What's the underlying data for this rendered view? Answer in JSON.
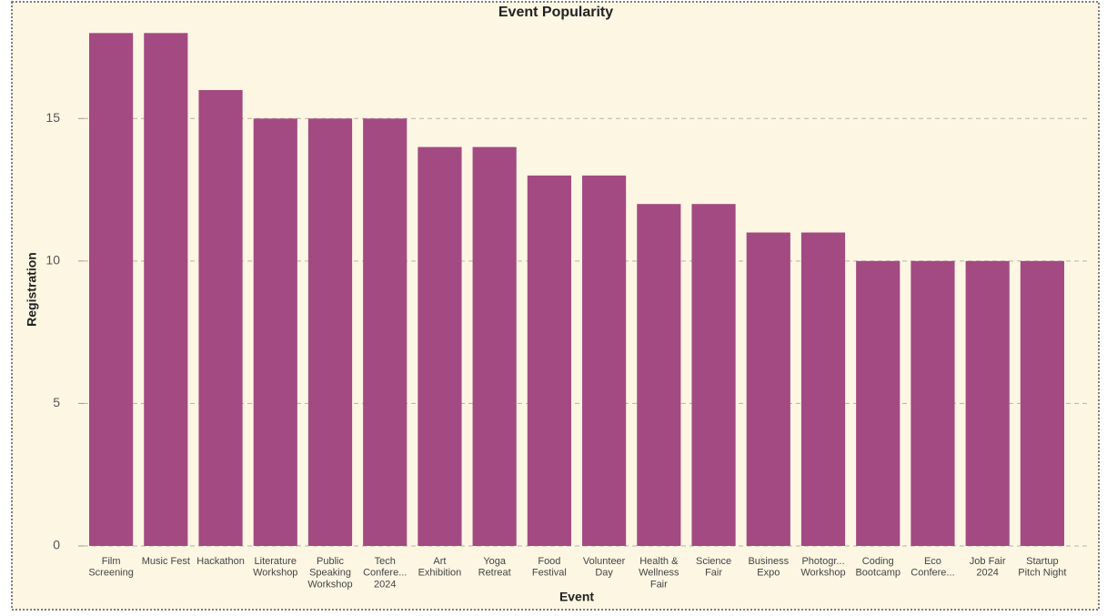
{
  "chart_data": {
    "type": "bar",
    "title": "Event Popularity",
    "x_label": "Event",
    "y_label": "Registration",
    "categories": [
      "Film\nScreening",
      "Music Fest",
      "Hackathon",
      "Literature\nWorkshop",
      "Public\nSpeaking\nWorkshop",
      "Tech\nConfere...\n2024",
      "Art\nExhibition",
      "Yoga\nRetreat",
      "Food\nFestival",
      "Volunteer\nDay",
      "Health &\nWellness\nFair",
      "Science\nFair",
      "Business\nExpo",
      "Photogr...\nWorkshop",
      "Coding\nBootcamp",
      "Eco\nConfere...",
      "Job Fair\n2024",
      "Startup\nPitch Night"
    ],
    "values": [
      18,
      18,
      16,
      15,
      15,
      15,
      14,
      14,
      13,
      13,
      12,
      12,
      11,
      11,
      10,
      10,
      10,
      10
    ],
    "color": "#a34a82",
    "ylim": [
      0,
      19
    ],
    "yticks": [
      0,
      5,
      10,
      15
    ],
    "grid": true
  }
}
